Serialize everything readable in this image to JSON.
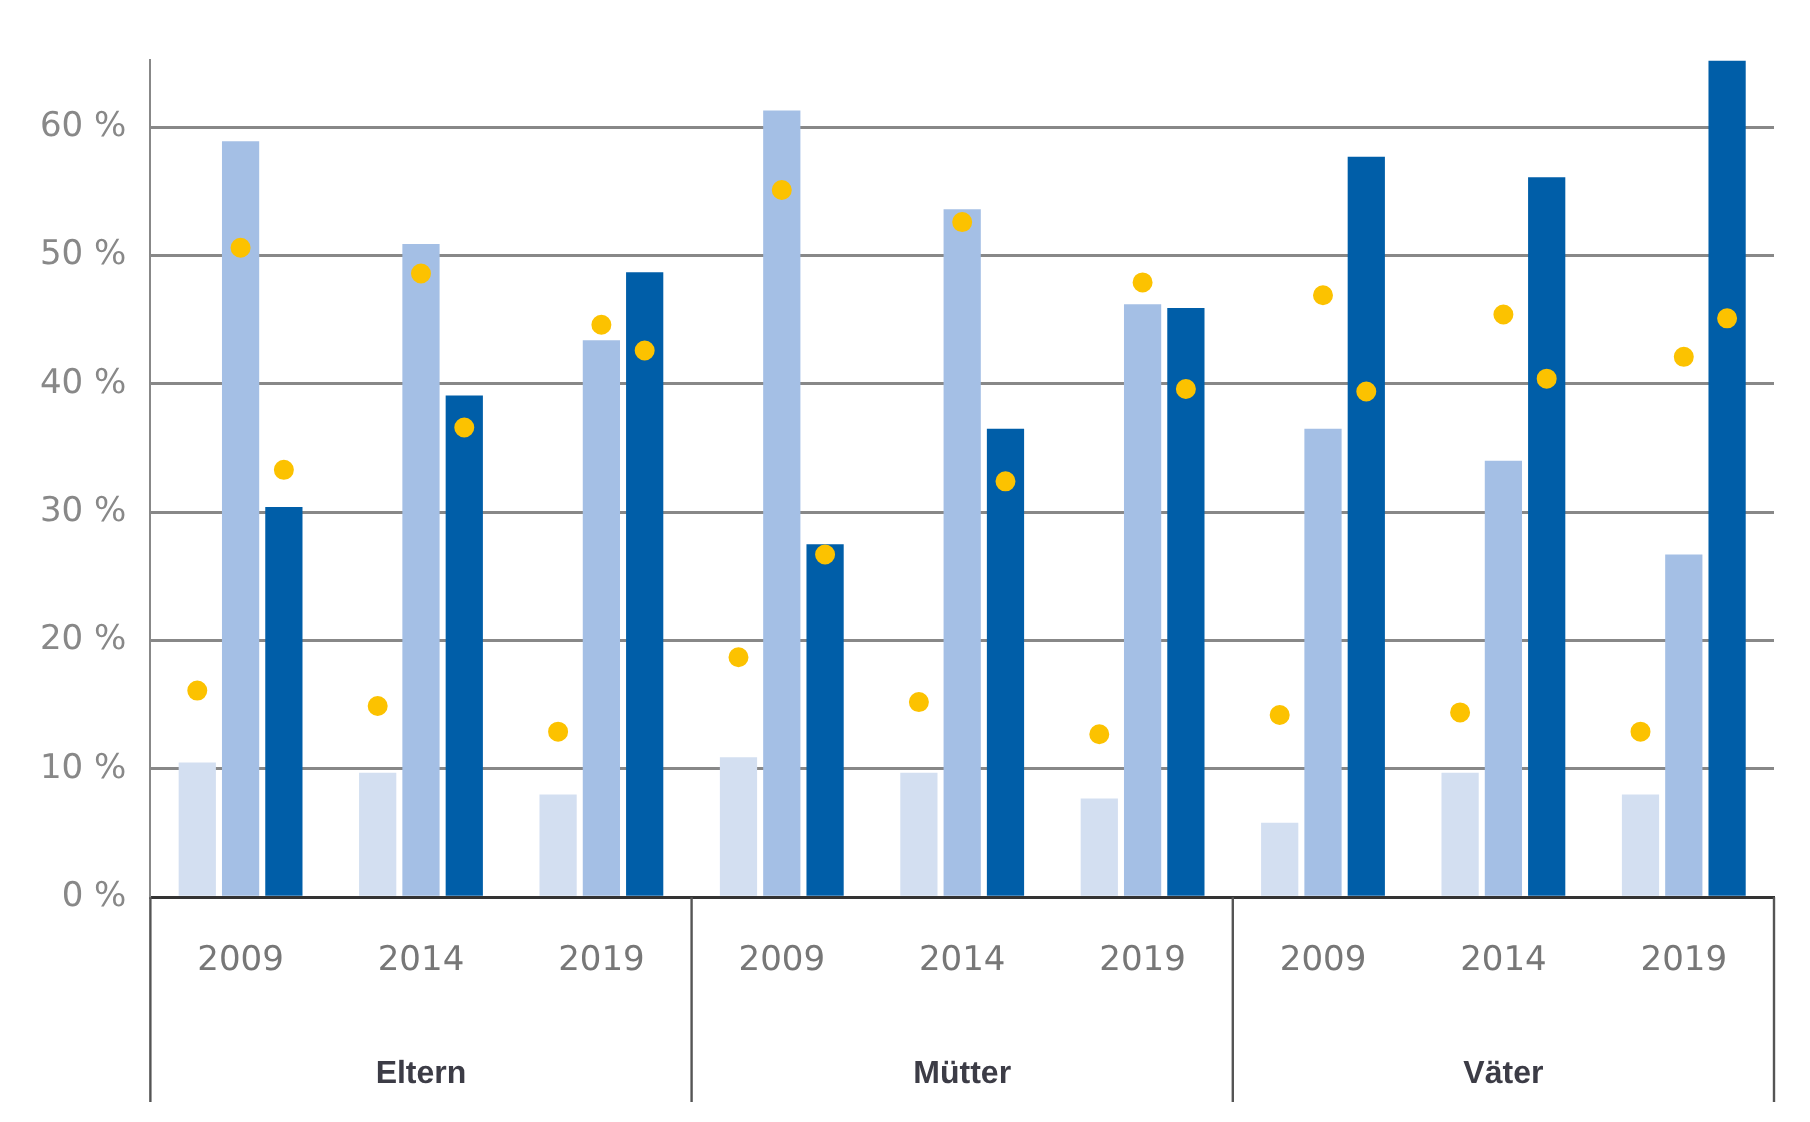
{
  "chart_data": {
    "type": "bar",
    "categories": [
      "2009",
      "2014",
      "2019",
      "2009",
      "2014",
      "2019",
      "2009",
      "2014",
      "2019"
    ],
    "series": [
      {
        "color": "#d3dff1",
        "values": [
          10.5,
          9.7,
          8.0,
          10.9,
          9.7,
          7.7,
          5.8,
          9.7,
          8.0
        ]
      },
      {
        "color": "#a4bfe5",
        "values": [
          58.9,
          50.9,
          43.4,
          61.3,
          53.6,
          46.2,
          36.5,
          34.0,
          26.7
        ]
      },
      {
        "color": "#005ea8",
        "values": [
          30.4,
          39.1,
          48.7,
          27.5,
          36.5,
          45.9,
          57.7,
          56.1,
          65.2
        ]
      },
      {
        "type": "scatter",
        "color": "#fcc200",
        "values": [
          16.1,
          14.9,
          12.9,
          18.7,
          15.2,
          12.7,
          14.2,
          14.4,
          12.9
        ]
      },
      {
        "type": "scatter",
        "color": "#fcc200",
        "values": [
          50.6,
          48.6,
          44.6,
          55.1,
          52.6,
          47.9,
          46.9,
          45.4,
          42.1
        ]
      },
      {
        "type": "scatter",
        "color": "#fcc200",
        "values": [
          33.3,
          36.6,
          42.6,
          26.7,
          32.4,
          39.6,
          39.4,
          40.4,
          45.1
        ]
      }
    ],
    "yticks": [
      {
        "value": 0,
        "label": "0 %"
      },
      {
        "value": 10,
        "label": "10 %"
      },
      {
        "value": 20,
        "label": "20 %"
      },
      {
        "value": 30,
        "label": "30 %"
      },
      {
        "value": 40,
        "label": "40 %"
      },
      {
        "value": 50,
        "label": "50 %"
      },
      {
        "value": 60,
        "label": "60 %"
      }
    ],
    "ylim": [
      0,
      65.2
    ],
    "grid": "y",
    "legend": false,
    "marker": "circle",
    "annotations": [
      "Eltern",
      "Mütter",
      "Väter"
    ]
  }
}
